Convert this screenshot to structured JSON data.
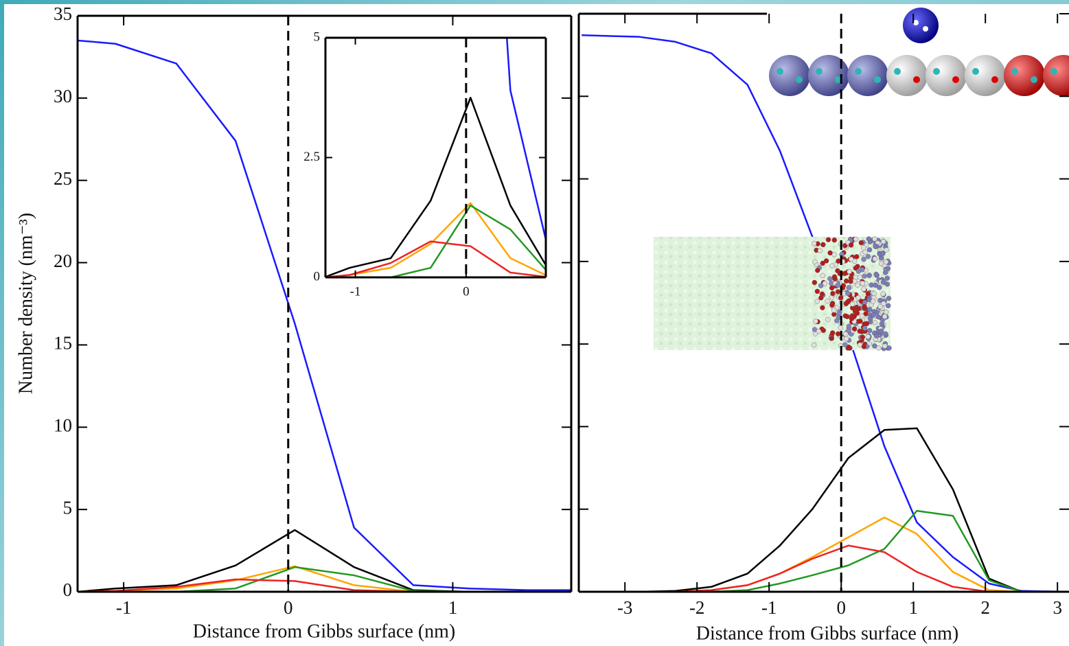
{
  "chart_data": [
    {
      "type": "line",
      "x_label": "Distance from Gibbs surface (nm)",
      "y_label": "Number density (nm⁻³)",
      "x": [
        -1.28,
        -1.05,
        -0.68,
        -0.32,
        0.04,
        0.4,
        0.76,
        1.1,
        1.45,
        1.72
      ],
      "series": [
        {
          "color": "#1a1aff",
          "values": [
            33.5,
            33.3,
            32.1,
            27.4,
            16.3,
            3.9,
            0.4,
            0.2,
            0.1,
            0.1
          ]
        },
        {
          "color": "#000000",
          "values": [
            0,
            0.2,
            0.4,
            1.6,
            3.75,
            1.5,
            0.1,
            0,
            0,
            0
          ]
        },
        {
          "color": "#ffa500",
          "values": [
            0,
            0.05,
            0.2,
            0.7,
            1.55,
            0.4,
            0,
            0,
            0,
            0
          ]
        },
        {
          "color": "#229922",
          "values": [
            0,
            0,
            0,
            0.2,
            1.5,
            1.0,
            0.05,
            0,
            0,
            0
          ]
        },
        {
          "color": "#ee2222",
          "values": [
            0,
            0.05,
            0.3,
            0.75,
            0.65,
            0.1,
            0,
            0,
            0,
            0
          ]
        }
      ],
      "xlim": [
        -1.28,
        1.72
      ],
      "xticks": [
        -1,
        0,
        1
      ],
      "ylim": [
        0,
        35
      ],
      "yticks": [
        0,
        5,
        10,
        15,
        20,
        25,
        30,
        35
      ],
      "vline": 0,
      "inset": {
        "xlim": [
          -1.27,
          0.72
        ],
        "xticks": [
          -1,
          0
        ],
        "ylim": [
          0,
          5
        ],
        "yticks": [
          0,
          2.5,
          5
        ]
      }
    },
    {
      "type": "line",
      "x_label": "Distance from Gibbs surface (nm)",
      "x": [
        -3.6,
        -2.8,
        -2.3,
        -1.8,
        -1.3,
        -0.85,
        -0.4,
        0.1,
        0.6,
        1.05,
        1.55,
        2.05,
        2.5,
        3.16
      ],
      "series": [
        {
          "color": "#1a1aff",
          "values": [
            33.7,
            33.6,
            33.3,
            32.6,
            30.7,
            26.7,
            21.5,
            15.5,
            8.8,
            4.2,
            2.1,
            0.5,
            0.05,
            0
          ]
        },
        {
          "color": "#000000",
          "values": [
            0,
            0,
            0.05,
            0.3,
            1.1,
            2.8,
            5.0,
            8.1,
            9.8,
            9.9,
            6.2,
            0.8,
            0,
            0
          ]
        },
        {
          "color": "#ffa500",
          "values": [
            0,
            0,
            0,
            0.1,
            0.4,
            1.1,
            2.1,
            3.3,
            4.5,
            3.5,
            1.2,
            0.1,
            0,
            0
          ]
        },
        {
          "color": "#229922",
          "values": [
            0,
            0,
            0,
            0,
            0.1,
            0.5,
            1.0,
            1.6,
            2.6,
            4.9,
            4.6,
            0.7,
            0,
            0
          ]
        },
        {
          "color": "#ee2222",
          "values": [
            0,
            0,
            0,
            0.1,
            0.4,
            1.1,
            2.0,
            2.8,
            2.4,
            1.2,
            0.3,
            0,
            0,
            0
          ]
        }
      ],
      "xlim": [
        -3.64,
        3.16
      ],
      "xticks": [
        -3,
        -2,
        -1,
        0,
        1,
        2,
        3
      ],
      "ylim": [
        0,
        35
      ],
      "yticks": [
        0,
        5,
        10,
        15,
        20,
        25,
        30,
        35
      ],
      "vline": 0
    }
  ]
}
